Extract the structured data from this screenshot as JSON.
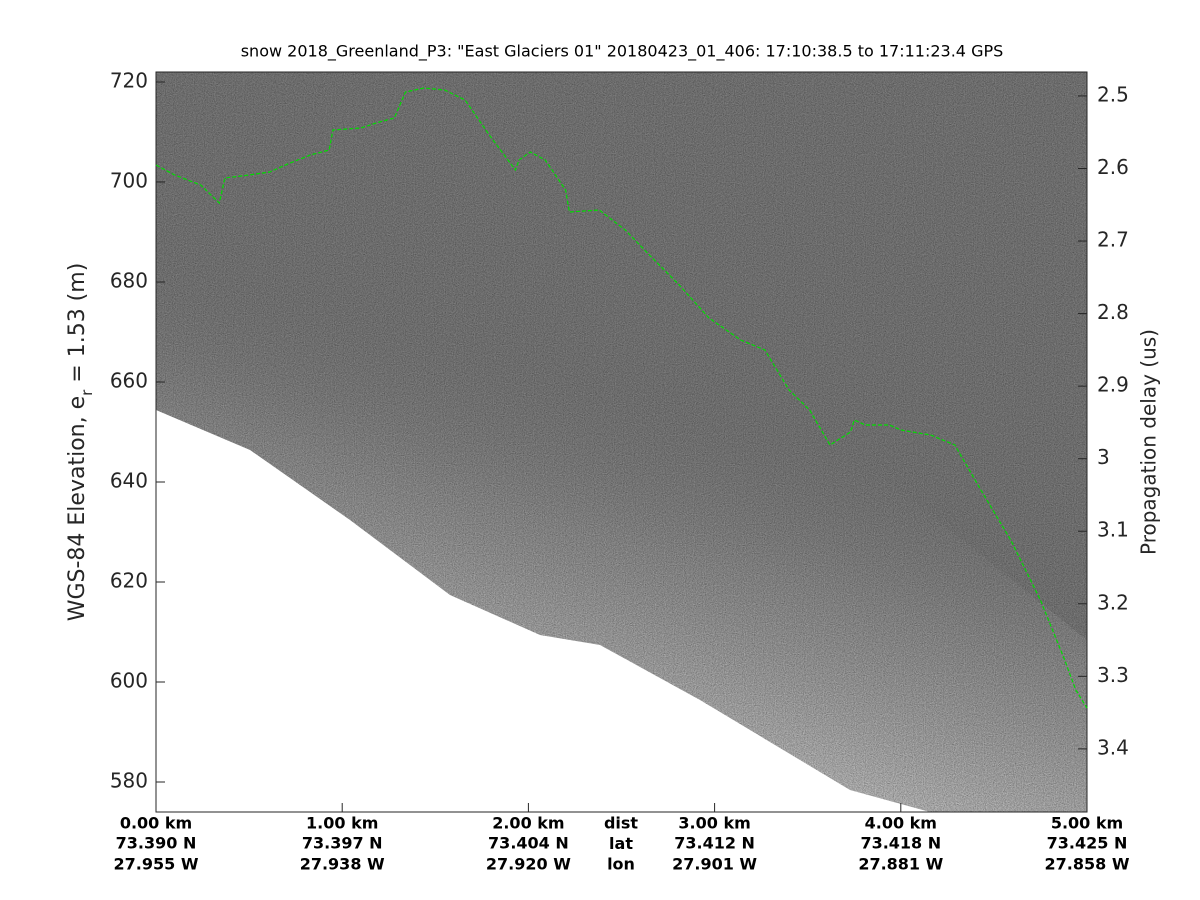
{
  "chart_data": {
    "type": "echogram",
    "title": "snow 2018_Greenland_P3: \"East Glaciers 01\"  20180423_01_406: 17:10:38.5 to 17:11:23.4 GPS",
    "ylabel": [
      "WGS-84 Elevation, e",
      "r",
      " = 1.53 (m)"
    ],
    "y2label": "Propagation delay (us)",
    "xlim": [
      0,
      5
    ],
    "xticks": [
      {
        "value": 0,
        "label": "0.00 km"
      },
      {
        "value": 1,
        "label": "1.00 km"
      },
      {
        "value": 2,
        "label": "2.00 km"
      },
      {
        "value": 3,
        "label": "3.00 km"
      },
      {
        "value": 4,
        "label": "4.00 km"
      },
      {
        "value": 5,
        "label": "5.00 km"
      }
    ],
    "lat_labels": [
      "73.390 N",
      "73.397 N",
      "73.404 N",
      "73.412 N",
      "73.418 N",
      "73.425 N"
    ],
    "lon_labels": [
      "27.955 W",
      "27.938 W",
      "27.920 W",
      "27.901 W",
      "27.881 W",
      "27.858 W"
    ],
    "x_row_names": [
      "dist",
      "lat",
      "lon"
    ],
    "ylim": [
      574,
      722
    ],
    "yticks": [
      580,
      600,
      620,
      640,
      660,
      680,
      700,
      720
    ],
    "y2lim": [
      3.487,
      2.467
    ],
    "y2ticks": [
      2.5,
      2.6,
      2.7,
      2.8,
      2.9,
      3,
      3.1,
      3.2,
      3.3,
      3.4
    ],
    "series": [
      {
        "color": "#00dd00",
        "x": [
          0.0,
          0.1,
          0.24,
          0.34,
          0.37,
          0.5,
          0.61,
          0.72,
          0.83,
          0.93,
          0.95,
          1.1,
          1.2,
          1.28,
          1.34,
          1.44,
          1.55,
          1.66,
          1.79,
          1.87,
          1.93,
          1.95,
          2.01,
          2.09,
          2.2,
          2.22,
          2.38,
          2.52,
          2.65,
          2.81,
          2.97,
          3.14,
          3.27,
          3.4,
          3.51,
          3.62,
          3.73,
          3.75,
          3.81,
          3.94,
          4.0,
          4.16,
          4.29,
          4.43,
          4.59,
          4.75,
          4.88,
          4.94,
          5.0
        ],
        "values": [
          703.4,
          701.4,
          699.4,
          695.8,
          700.8,
          701.4,
          702.0,
          703.8,
          705.4,
          706.4,
          710.4,
          710.8,
          712.0,
          712.8,
          718.0,
          718.8,
          718.4,
          716.4,
          709.4,
          705.4,
          702.4,
          704.4,
          706.0,
          704.4,
          698.4,
          694.0,
          694.4,
          690.4,
          685.4,
          679.4,
          672.8,
          668.4,
          666.4,
          658.4,
          654.4,
          647.4,
          650.0,
          652.4,
          651.4,
          651.4,
          650.4,
          649.4,
          647.4,
          638.4,
          628.4,
          616.4,
          604.4,
          598.4,
          594.8
        ]
      }
    ]
  }
}
